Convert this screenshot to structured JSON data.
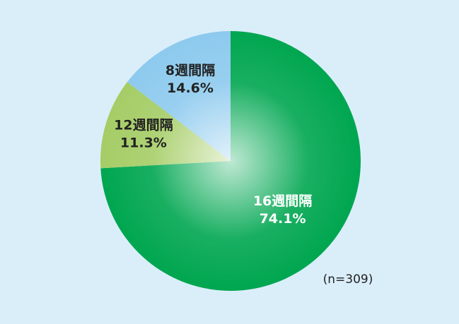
{
  "chart_data": {
    "type": "pie",
    "categories": [
      "16週間隔",
      "12週間隔",
      "8週間隔"
    ],
    "values": [
      74.1,
      11.3,
      14.6
    ],
    "value_labels": [
      "74.1%",
      "11.3%",
      "14.6%"
    ],
    "colors": [
      "#00a650",
      "#a5cd66",
      "#8dcaee"
    ],
    "annotation": "(n=309)"
  }
}
